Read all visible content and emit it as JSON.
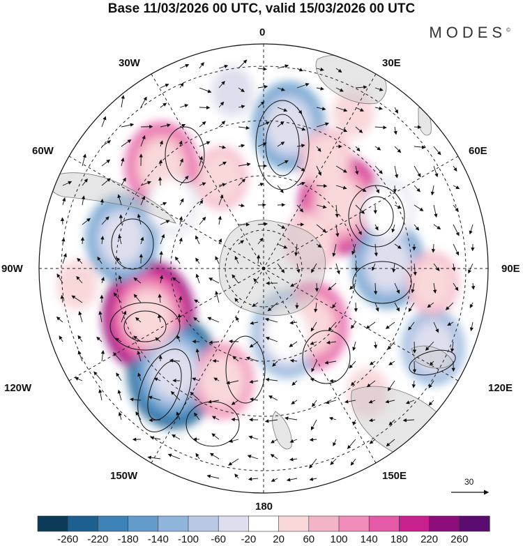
{
  "title": "Base 11/03/2026 00 UTC, valid 15/03/2026 00 UTC",
  "brand": "MODES",
  "brand_mark": "©",
  "longitude_labels": {
    "top": "0",
    "top_left": "30W",
    "top_right": "30E",
    "upper_left": "60W",
    "upper_right": "60E",
    "left": "90W",
    "right": "90E",
    "lower_left": "120W",
    "lower_right": "120E",
    "bottom_left": "150W",
    "bottom_right": "150E",
    "bottom": "180"
  },
  "reference_vector": "30",
  "colorbar": {
    "ticks": [
      "-260",
      "-220",
      "-180",
      "-140",
      "-100",
      "-60",
      "-20",
      "20",
      "60",
      "100",
      "140",
      "180",
      "220",
      "260"
    ],
    "colors": [
      "#0d3a57",
      "#1d5f8e",
      "#3e83b7",
      "#639ccb",
      "#8fb5da",
      "#b8c8e5",
      "#dedfee",
      "#ffffff",
      "#f9d8da",
      "#f4b4c7",
      "#ef8cb7",
      "#e45aa7",
      "#c8218d",
      "#8c0d7c",
      "#5a0d6e"
    ]
  },
  "anomaly_centers": [
    {
      "lon_deg": 10,
      "colat_deg": 58,
      "value": -150
    },
    {
      "lon_deg": -45,
      "colat_deg": 58,
      "value": 150
    },
    {
      "lon_deg": -25,
      "colat_deg": 40,
      "value": 60
    },
    {
      "lon_deg": 50,
      "colat_deg": 40,
      "value": 180
    },
    {
      "lon_deg": 30,
      "colat_deg": 50,
      "value": 60
    },
    {
      "lon_deg": 60,
      "colat_deg": 22,
      "value": 60
    },
    {
      "lon_deg": -78,
      "colat_deg": 58,
      "value": -160
    },
    {
      "lon_deg": -55,
      "colat_deg": 45,
      "value": -60
    },
    {
      "lon_deg": 88,
      "colat_deg": 50,
      "value": -170
    },
    {
      "lon_deg": 65,
      "colat_deg": 55,
      "value": -60
    },
    {
      "lon_deg": -113,
      "colat_deg": 50,
      "value": 230
    },
    {
      "lon_deg": 140,
      "colat_deg": 30,
      "value": 150
    },
    {
      "lon_deg": 160,
      "colat_deg": 28,
      "value": -140
    },
    {
      "lon_deg": -139,
      "colat_deg": 55,
      "value": -240
    },
    {
      "lon_deg": -160,
      "colat_deg": 48,
      "value": 130
    },
    {
      "lon_deg": 115,
      "colat_deg": 75,
      "value": -120
    },
    {
      "lon_deg": 95,
      "colat_deg": 68,
      "value": 60
    },
    {
      "lon_deg": 140,
      "colat_deg": 65,
      "value": 40
    },
    {
      "lon_deg": -95,
      "colat_deg": 75,
      "value": 40
    },
    {
      "lon_deg": -10,
      "colat_deg": 72,
      "value": -40
    },
    {
      "lon_deg": 30,
      "colat_deg": 72,
      "value": 30
    }
  ]
}
